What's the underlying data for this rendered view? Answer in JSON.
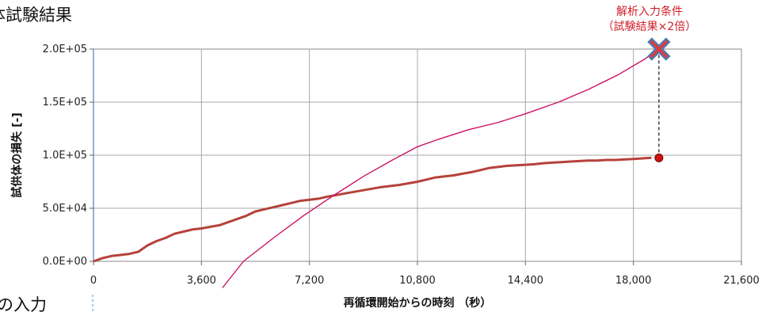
{
  "page": {
    "header_fragment": "体試験結果",
    "side_fragment": "の入力"
  },
  "chart_data": {
    "type": "line",
    "xlabel": "再循環開始からの時刻 （秒）",
    "ylabel": "試供体の損失 [-]",
    "xlim": [
      0,
      21600
    ],
    "ylim": [
      0,
      200000
    ],
    "x_ticks": [
      "0",
      "3,600",
      "7,200",
      "10,800",
      "14,400",
      "18,000",
      "21,600"
    ],
    "y_ticks": [
      "0.0E+00",
      "5.0E+04",
      "1.0E+05",
      "1.5E+05",
      "2.0E+05"
    ],
    "grid": true,
    "series": [
      {
        "name": "",
        "color": "#b5423a",
        "x": [
          0,
          300,
          600,
          900,
          1200,
          1500,
          1800,
          2100,
          2400,
          2700,
          3000,
          3300,
          3600,
          3900,
          4200,
          4500,
          4800,
          5100,
          5400,
          5700,
          6000,
          6300,
          6600,
          6900,
          7200,
          7500,
          7800,
          8100,
          8400,
          8700,
          9000,
          9300,
          9600,
          9900,
          10200,
          10500,
          10800,
          11100,
          11400,
          11700,
          12000,
          12300,
          12600,
          12900,
          13200,
          13500,
          13800,
          14100,
          14400,
          14700,
          15000,
          15300,
          15600,
          15900,
          16200,
          16500,
          16800,
          17100,
          17400,
          17700,
          18000,
          18300,
          18600
        ],
        "y": [
          0,
          3000,
          5000,
          6000,
          7000,
          9000,
          15000,
          19000,
          22000,
          26000,
          28000,
          30000,
          31000,
          32500,
          34000,
          37000,
          40000,
          43000,
          47000,
          49000,
          51000,
          53000,
          55000,
          57000,
          58000,
          59000,
          61000,
          62500,
          64000,
          65500,
          67000,
          68500,
          70000,
          71000,
          72000,
          73500,
          75000,
          77000,
          79000,
          80000,
          81000,
          82500,
          84000,
          86000,
          88000,
          89000,
          90000,
          90500,
          91000,
          91500,
          92500,
          93000,
          93500,
          94000,
          94500,
          95000,
          95000,
          95500,
          95500,
          96000,
          96500,
          97000,
          97500
        ]
      },
      {
        "name": "",
        "color": "#cc1166",
        "x": [
          4300,
          5000,
          6000,
          7000,
          8000,
          9000,
          10000,
          10800,
          11500,
          12500,
          13500,
          14400,
          15500,
          16500,
          17500,
          18400,
          18800
        ],
        "y": [
          -25000,
          0,
          22000,
          43000,
          62000,
          80000,
          96000,
          108000,
          115000,
          124000,
          131000,
          139000,
          150000,
          162000,
          176000,
          191000,
          200000
        ]
      }
    ],
    "markers": [
      {
        "name": "end-point",
        "x": 18850,
        "y": 97500,
        "color": "#cc1111"
      },
      {
        "name": "cross-point",
        "x": 18850,
        "y": 200000,
        "color": "#4a7bb5"
      }
    ],
    "annotation": {
      "line1": "解析入力条件",
      "line2": "（試験結果×2倍）"
    }
  }
}
